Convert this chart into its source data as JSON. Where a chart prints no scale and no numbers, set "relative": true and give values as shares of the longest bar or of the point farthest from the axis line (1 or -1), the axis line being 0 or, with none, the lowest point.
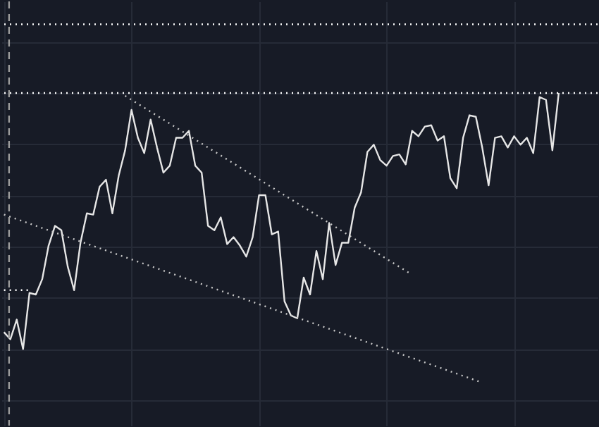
{
  "chart_data": {
    "type": "line",
    "relative": true,
    "grid": true,
    "marker": "none",
    "categories": [
      null,
      null,
      null,
      null,
      null,
      null,
      null,
      null,
      null,
      null,
      null,
      null,
      null,
      null,
      null,
      null,
      null,
      null,
      null,
      null,
      null,
      null,
      null,
      null,
      null,
      null,
      null,
      null,
      null,
      null,
      null,
      null,
      null,
      null,
      null,
      null,
      null,
      null,
      null,
      null,
      null,
      null,
      null,
      null,
      null,
      null,
      null,
      null,
      null,
      null,
      null,
      null,
      null,
      null,
      null,
      null,
      null,
      null,
      null,
      null,
      null,
      null,
      null,
      null,
      null,
      null,
      null,
      null,
      null,
      null,
      null,
      null,
      null,
      null,
      null,
      null,
      null,
      null,
      null,
      null,
      null,
      null,
      null,
      null,
      null,
      null,
      null,
      null
    ],
    "series": [
      {
        "color": "#e6e6e6",
        "line_style": "solid",
        "values": [
          0.066,
          0.038,
          0.115,
          0,
          0.219,
          0.213,
          0.273,
          0.404,
          0.481,
          0.464,
          0.322,
          0.23,
          0.415,
          0.53,
          0.525,
          0.634,
          0.661,
          0.53,
          0.678,
          0.776,
          0.934,
          0.825,
          0.765,
          0.896,
          0.787,
          0.689,
          0.716,
          0.825,
          0.825,
          0.852,
          0.716,
          0.689,
          0.481,
          0.464,
          0.514,
          0.41,
          0.437,
          0.404,
          0.361,
          0.437,
          0.601,
          0.601,
          0.448,
          0.459,
          0.186,
          0.131,
          0.12,
          0.279,
          0.213,
          0.383,
          0.273,
          0.492,
          0.328,
          0.415,
          0.415,
          0.552,
          0.612,
          0.77,
          0.798,
          0.738,
          0.716,
          0.754,
          0.76,
          0.721,
          0.852,
          0.831,
          0.869,
          0.874,
          0.814,
          0.831,
          0.667,
          0.628,
          0.825,
          0.913,
          0.907,
          0.787,
          0.639,
          0.825,
          0.831,
          0.787,
          0.831,
          0.798,
          0.825,
          0.765,
          0.984,
          0.973,
          0.776,
          1
        ]
      },
      {
        "type": "line",
        "color": "#c8c8c8",
        "line_style": "dotted",
        "values": [
          null,
          null,
          null,
          null,
          null,
          null,
          null,
          null,
          null,
          null,
          null,
          null,
          null,
          null,
          null,
          null,
          null,
          null,
          null,
          0.989,
          null,
          null,
          null,
          null,
          null,
          null,
          null,
          null,
          null,
          null,
          null,
          null,
          null,
          null,
          null,
          null,
          null,
          null,
          null,
          null,
          null,
          null,
          null,
          null,
          null,
          null,
          null,
          null,
          null,
          null,
          null,
          null,
          null,
          null,
          null,
          null,
          null,
          null,
          null,
          null,
          null,
          null,
          null,
          null,
          0.29,
          null,
          null,
          null,
          null,
          null,
          null,
          null,
          null,
          null,
          null,
          null,
          null,
          null,
          null,
          null,
          null,
          null,
          null,
          null,
          null,
          null,
          null,
          null
        ]
      },
      {
        "type": "line",
        "color": "#c8c8c8",
        "line_style": "dotted",
        "values": [
          0.525,
          null,
          null,
          null,
          null,
          null,
          null,
          null,
          null,
          null,
          null,
          null,
          null,
          null,
          null,
          null,
          null,
          null,
          null,
          null,
          null,
          null,
          null,
          null,
          null,
          null,
          null,
          null,
          null,
          null,
          null,
          null,
          null,
          null,
          null,
          null,
          null,
          null,
          null,
          null,
          null,
          null,
          null,
          null,
          null,
          null,
          null,
          null,
          null,
          null,
          null,
          null,
          null,
          null,
          null,
          null,
          null,
          null,
          null,
          null,
          null,
          null,
          null,
          null,
          null,
          null,
          null,
          null,
          null,
          null,
          null,
          null,
          null,
          null,
          null,
          -0.131,
          null,
          null,
          null,
          null,
          null,
          null,
          null,
          null,
          null,
          null,
          null,
          null
        ]
      },
      {
        "type": "line",
        "color": "#ffffff",
        "line_style": "dotted",
        "values": [
          0.23,
          null,
          null,
          null,
          0.23,
          null,
          null,
          null,
          null,
          null,
          null,
          null,
          null,
          null,
          null,
          null,
          null,
          null,
          null,
          null,
          null,
          null,
          null,
          null,
          null,
          null,
          null,
          null,
          null,
          null,
          null,
          null,
          null,
          null,
          null,
          null,
          null,
          null,
          null,
          null,
          null,
          null,
          null,
          null,
          null,
          null,
          null,
          null,
          null,
          null,
          null,
          null,
          null,
          null,
          null,
          null,
          null,
          null,
          null,
          null,
          null,
          null,
          null,
          null,
          null,
          null,
          null,
          null,
          null,
          null,
          null,
          null,
          null,
          null,
          null,
          null,
          null,
          null,
          null,
          null,
          null,
          null,
          null,
          null,
          null,
          null,
          null,
          null
        ]
      }
    ],
    "ref_lines": [
      {
        "axis": "y",
        "value": 1,
        "color": "#ffffff",
        "line_style": "dotted"
      },
      {
        "axis": "y",
        "value": 1.268,
        "color": "#ffffff",
        "line_style": "dotted"
      }
    ]
  }
}
